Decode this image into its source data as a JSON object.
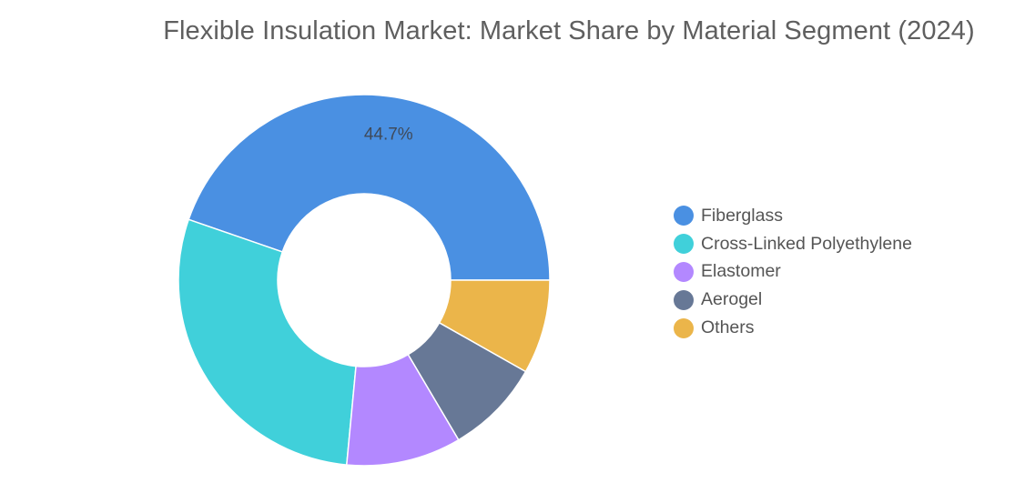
{
  "chart_data": {
    "type": "pie",
    "title": "Flexible Insulation Market: Market Share by Material Segment (2024)",
    "donut": true,
    "categories": [
      "Fiberglass",
      "Cross-Linked Polyethylene",
      "Elastomer",
      "Aerogel",
      "Others"
    ],
    "values": [
      44.7,
      28.8,
      10.0,
      8.3,
      8.2
    ],
    "value_unit": "%",
    "data_labels": [
      {
        "category": "Fiberglass",
        "text": "44.7%"
      }
    ],
    "colors": [
      "#4a90e2",
      "#40d0da",
      "#b388ff",
      "#677896",
      "#ebb54a"
    ],
    "legend": "right"
  }
}
